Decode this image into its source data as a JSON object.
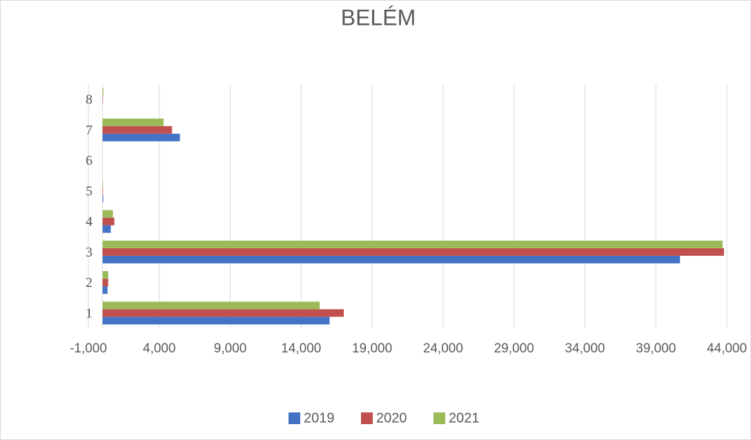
{
  "chart_data": {
    "type": "bar",
    "orientation": "horizontal",
    "title": "BELÉM",
    "categories": [
      "1",
      "2",
      "3",
      "4",
      "5",
      "6",
      "7",
      "8"
    ],
    "series": [
      {
        "name": "2019",
        "color": "#4472c4",
        "values": [
          16000,
          350,
          40700,
          580,
          50,
          0,
          5450,
          0
        ]
      },
      {
        "name": "2020",
        "color": "#c0504d",
        "values": [
          17000,
          400,
          43800,
          830,
          30,
          0,
          4900,
          30
        ]
      },
      {
        "name": "2021",
        "color": "#9bbb59",
        "values": [
          15300,
          400,
          43700,
          730,
          30,
          0,
          4300,
          60
        ]
      }
    ],
    "xlim": [
      -1000,
      44000
    ],
    "xticks": [
      {
        "value": -1000,
        "label": "-1,000"
      },
      {
        "value": 4000,
        "label": "4,000"
      },
      {
        "value": 9000,
        "label": "9,000"
      },
      {
        "value": 14000,
        "label": "14,000"
      },
      {
        "value": 19000,
        "label": "19,000"
      },
      {
        "value": 24000,
        "label": "24,000"
      },
      {
        "value": 29000,
        "label": "29,000"
      },
      {
        "value": 34000,
        "label": "34,000"
      },
      {
        "value": 39000,
        "label": "39,000"
      },
      {
        "value": 44000,
        "label": "44,000"
      }
    ],
    "grid": true,
    "legend": "bottom"
  }
}
